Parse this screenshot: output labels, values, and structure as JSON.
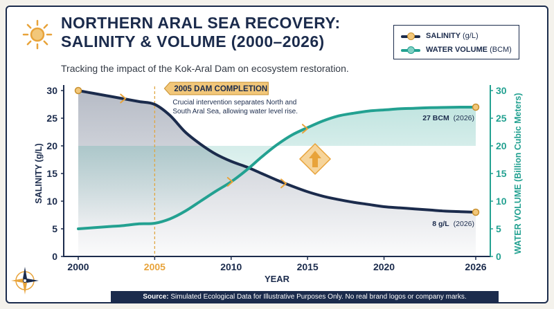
{
  "header": {
    "title_line1": "NORTHERN ARAL SEA RECOVERY:",
    "title_line2": "SALINITY & VOLUME (2000–2026)",
    "subtitle": "Tracking the impact of the Kok-Aral Dam on ecosystem restoration."
  },
  "legend": {
    "salinity_label": "SALINITY",
    "salinity_unit": "(g/L)",
    "volume_label": "WATER VOLUME",
    "volume_unit": "(BCM)"
  },
  "annotation": {
    "title": "2005 DAM COMPLETION",
    "text_line1": "Crucial intervention separates North and",
    "text_line2": "South Aral Sea, allowing water level rise."
  },
  "end_labels": {
    "volume_value": "27 BCM",
    "volume_year": "(2026)",
    "salinity_value": "8 g/L",
    "salinity_year": "(2026)"
  },
  "footer": {
    "source_label": "Source:",
    "source_text": "Simulated Ecological Data for Illustrative Purposes Only. No real brand logos or company marks."
  },
  "colors": {
    "navy": "#1b2b4c",
    "teal": "#23a191",
    "gold": "#e8a33a",
    "dashed_line": "#e0a640"
  },
  "chart_data": {
    "type": "line",
    "xlabel": "YEAR",
    "ylabel_left": "SALINITY (g/L)",
    "ylabel_right": "WATER VOLUME (Billion Cubic Meters)",
    "x_ticks": [
      2000,
      2005,
      2010,
      2015,
      2020,
      2026
    ],
    "highlight_tick": 2005,
    "ylim_left": [
      0,
      30
    ],
    "ylim_right": [
      0,
      30
    ],
    "y_ticks": [
      0,
      5,
      10,
      15,
      20,
      25,
      30
    ],
    "grid": false,
    "legend_position": "top-right",
    "series": [
      {
        "name": "SALINITY (g/L)",
        "axis": "left",
        "x": [
          2000,
          2001,
          2002,
          2003,
          2004,
          2005,
          2006,
          2007,
          2008,
          2009,
          2010,
          2011,
          2012,
          2013,
          2014,
          2015,
          2016,
          2017,
          2018,
          2019,
          2020,
          2021,
          2022,
          2023,
          2024,
          2025,
          2026
        ],
        "y": [
          30,
          29.5,
          29.0,
          28.5,
          28.0,
          27.5,
          25.5,
          22.5,
          20.3,
          18.5,
          17.2,
          16.2,
          15.0,
          13.8,
          12.7,
          11.7,
          10.9,
          10.3,
          9.8,
          9.4,
          9.0,
          8.8,
          8.6,
          8.4,
          8.2,
          8.1,
          8.0
        ]
      },
      {
        "name": "WATER VOLUME (BCM)",
        "axis": "right",
        "x": [
          2000,
          2001,
          2002,
          2003,
          2004,
          2005,
          2006,
          2007,
          2008,
          2009,
          2010,
          2011,
          2012,
          2013,
          2014,
          2015,
          2016,
          2017,
          2018,
          2019,
          2020,
          2021,
          2022,
          2023,
          2024,
          2025,
          2026
        ],
        "y": [
          5,
          5.2,
          5.4,
          5.6,
          5.9,
          6.0,
          6.8,
          8.2,
          10.0,
          11.8,
          13.5,
          15.6,
          18.0,
          20.2,
          22.0,
          23.3,
          24.5,
          25.4,
          25.9,
          26.3,
          26.5,
          26.7,
          26.8,
          26.9,
          26.95,
          27.0,
          27.0
        ]
      }
    ]
  }
}
